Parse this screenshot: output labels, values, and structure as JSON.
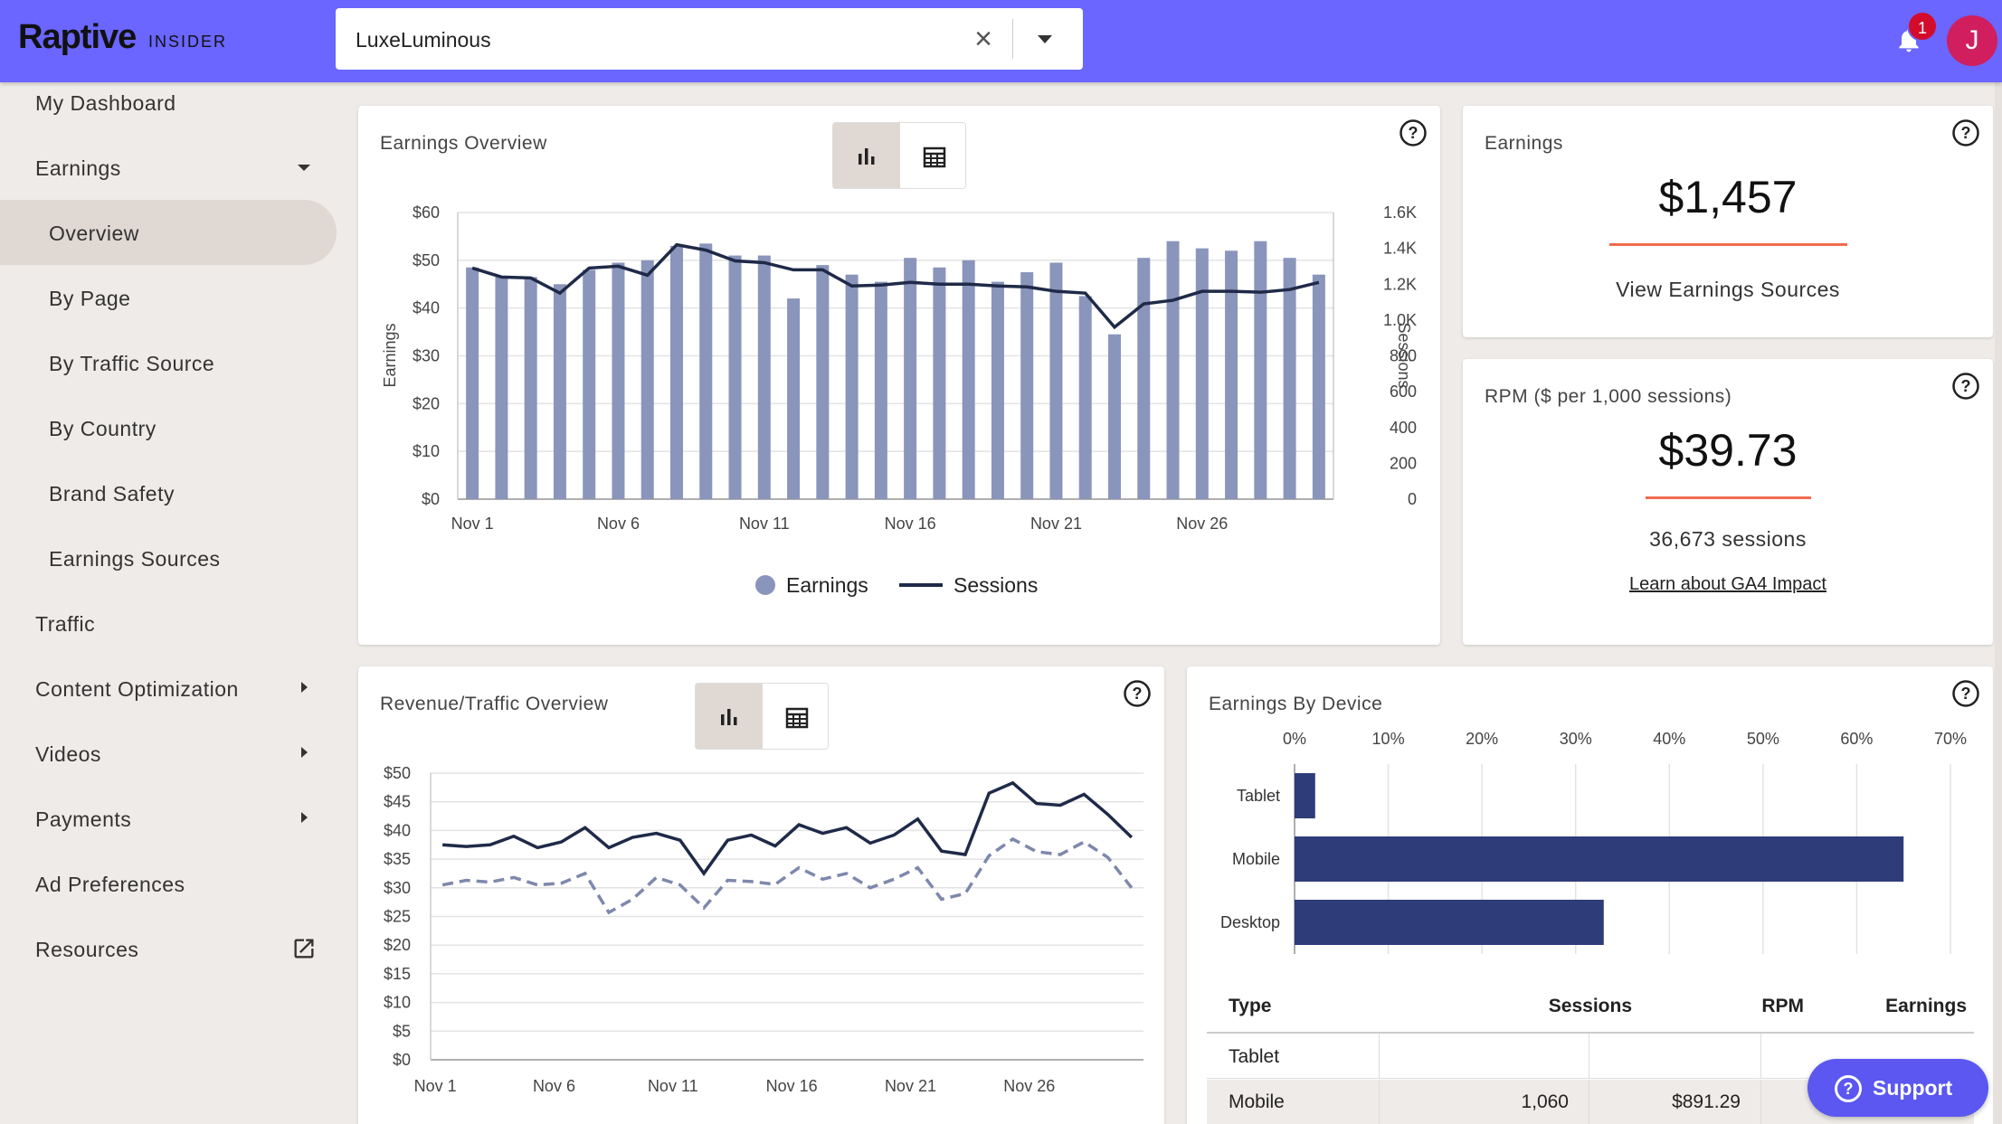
{
  "header": {
    "logo": "Raptive",
    "logo_sub": "INSIDER",
    "site_value": "LuxeLuminous",
    "notification_count": "1",
    "avatar_initial": "J"
  },
  "sidebar": {
    "items": [
      {
        "label": "My Dashboard",
        "level": "top",
        "arrow": "none"
      },
      {
        "label": "Earnings",
        "level": "top",
        "arrow": "down"
      },
      {
        "label": "Overview",
        "level": "sub",
        "arrow": "none",
        "active": true
      },
      {
        "label": "By Page",
        "level": "sub",
        "arrow": "none"
      },
      {
        "label": "By Traffic Source",
        "level": "sub",
        "arrow": "none"
      },
      {
        "label": "By Country",
        "level": "sub",
        "arrow": "none"
      },
      {
        "label": "Brand Safety",
        "level": "sub",
        "arrow": "none"
      },
      {
        "label": "Earnings Sources",
        "level": "sub",
        "arrow": "none"
      },
      {
        "label": "Traffic",
        "level": "top",
        "arrow": "none"
      },
      {
        "label": "Content Optimization",
        "level": "top",
        "arrow": "right"
      },
      {
        "label": "Videos",
        "level": "top",
        "arrow": "right"
      },
      {
        "label": "Payments",
        "level": "top",
        "arrow": "right"
      },
      {
        "label": "Ad Preferences",
        "level": "top",
        "arrow": "none"
      },
      {
        "label": "Resources",
        "level": "top",
        "arrow": "external"
      }
    ]
  },
  "earnings_overview": {
    "title": "Earnings Overview",
    "legend_earnings": "Earnings",
    "legend_sessions": "Sessions"
  },
  "earnings_card": {
    "title": "Earnings",
    "value": "$1,457",
    "link": "View Earnings Sources"
  },
  "rpm_card": {
    "title": "RPM ($ per 1,000 sessions)",
    "value": "$39.73",
    "sessions": "36,673 sessions",
    "link": "Learn about GA4 Impact"
  },
  "revenue_traffic": {
    "title": "Revenue/Traffic Overview"
  },
  "earnings_by_device": {
    "title": "Earnings By Device",
    "table_headers": [
      "Type",
      "Sessions",
      "RPM",
      "Earnings"
    ],
    "rows": [
      {
        "type": "Tablet",
        "sessions": "",
        "rpm": "",
        "earnings": ""
      },
      {
        "type": "Mobile",
        "sessions": "1,060",
        "rpm": "$891.29",
        "earnings": ""
      }
    ]
  },
  "support_label": "Support",
  "colors": {
    "brand": "#6a66ff",
    "bar": "#8a95bb",
    "line": "#1f2a48",
    "device_bar": "#2e3c7a",
    "accent_underline": "#f26b4f"
  },
  "chart_data": [
    {
      "type": "bar",
      "title": "Earnings Overview",
      "categories": [
        "Nov 1",
        "Nov 2",
        "Nov 3",
        "Nov 4",
        "Nov 5",
        "Nov 6",
        "Nov 7",
        "Nov 8",
        "Nov 9",
        "Nov 10",
        "Nov 11",
        "Nov 12",
        "Nov 13",
        "Nov 14",
        "Nov 15",
        "Nov 16",
        "Nov 17",
        "Nov 18",
        "Nov 19",
        "Nov 20",
        "Nov 21",
        "Nov 22",
        "Nov 23",
        "Nov 24",
        "Nov 25",
        "Nov 26",
        "Nov 27",
        "Nov 28",
        "Nov 29",
        "Nov 30"
      ],
      "x_tick_labels": [
        "Nov 1",
        "Nov 6",
        "Nov 11",
        "Nov 16",
        "Nov 21",
        "Nov 26"
      ],
      "series": [
        {
          "name": "Earnings",
          "axis": "left",
          "kind": "bar",
          "values": [
            48.5,
            46.5,
            46.5,
            45,
            48,
            49.5,
            50,
            53,
            53.5,
            51,
            51,
            42,
            49,
            47,
            45.5,
            50.5,
            48.5,
            50,
            45.5,
            47.5,
            49.5,
            42.5,
            34.5,
            50.5,
            54,
            52.5,
            52,
            54,
            50.5,
            47
          ]
        },
        {
          "name": "Sessions",
          "axis": "right",
          "kind": "line",
          "values": [
            1290,
            1240,
            1235,
            1150,
            1290,
            1300,
            1250,
            1420,
            1390,
            1330,
            1320,
            1280,
            1280,
            1190,
            1195,
            1210,
            1200,
            1200,
            1190,
            1185,
            1160,
            1150,
            960,
            1090,
            1110,
            1160,
            1160,
            1155,
            1170,
            1210
          ]
        }
      ],
      "ylabel": "Earnings",
      "y2label": "Sessions",
      "ylim": [
        0,
        60
      ],
      "y_ticks": [
        "$0",
        "$10",
        "$20",
        "$30",
        "$40",
        "$50",
        "$60"
      ],
      "y2lim": [
        0,
        1600
      ],
      "y2_ticks": [
        "0",
        "200",
        "400",
        "600",
        "800",
        "1.0K",
        "1.2K",
        "1.4K",
        "1.6K"
      ],
      "grid": true,
      "legend": "bottom"
    },
    {
      "type": "line",
      "title": "Revenue/Traffic Overview",
      "categories": [
        "Nov 1",
        "Nov 2",
        "Nov 3",
        "Nov 4",
        "Nov 5",
        "Nov 6",
        "Nov 7",
        "Nov 8",
        "Nov 9",
        "Nov 10",
        "Nov 11",
        "Nov 12",
        "Nov 13",
        "Nov 14",
        "Nov 15",
        "Nov 16",
        "Nov 17",
        "Nov 18",
        "Nov 19",
        "Nov 20",
        "Nov 21",
        "Nov 22",
        "Nov 23",
        "Nov 24",
        "Nov 25",
        "Nov 26",
        "Nov 27",
        "Nov 28",
        "Nov 29",
        "Nov 30"
      ],
      "x_tick_labels": [
        "Nov 1",
        "Nov 6",
        "Nov 11",
        "Nov 16",
        "Nov 21",
        "Nov 26"
      ],
      "series": [
        {
          "style": "solid",
          "values": [
            37.5,
            37.2,
            37.5,
            39,
            37,
            38,
            40.5,
            37,
            38.8,
            39.5,
            38.3,
            32.5,
            38.3,
            39.2,
            37.3,
            41,
            39.5,
            40.5,
            37.8,
            39.2,
            42,
            36.4,
            35.8,
            46.5,
            48.3,
            44.7,
            44.4,
            46.3,
            42.8,
            38.8
          ]
        },
        {
          "style": "dashed",
          "values": [
            30.5,
            31.3,
            31,
            31.8,
            30.5,
            30.8,
            32.5,
            25.7,
            28,
            31.8,
            30.5,
            26.5,
            31.3,
            31.1,
            30.6,
            33.5,
            31.5,
            32.5,
            30,
            31.5,
            33.5,
            28,
            29,
            35.6,
            38.5,
            36.3,
            35.8,
            38,
            35.3,
            30
          ]
        }
      ],
      "ylim": [
        0,
        50
      ],
      "y_ticks": [
        "$0",
        "$5",
        "$10",
        "$15",
        "$20",
        "$25",
        "$30",
        "$35",
        "$40",
        "$45",
        "$50"
      ],
      "grid": true
    },
    {
      "type": "bar",
      "orientation": "horizontal",
      "title": "Earnings By Device",
      "categories": [
        "Tablet",
        "Mobile",
        "Desktop"
      ],
      "values": [
        2.2,
        65,
        33
      ],
      "unit": "%",
      "xlim": [
        0,
        70
      ],
      "x_ticks": [
        "0%",
        "10%",
        "20%",
        "30%",
        "40%",
        "50%",
        "60%",
        "70%"
      ],
      "grid": true
    }
  ]
}
